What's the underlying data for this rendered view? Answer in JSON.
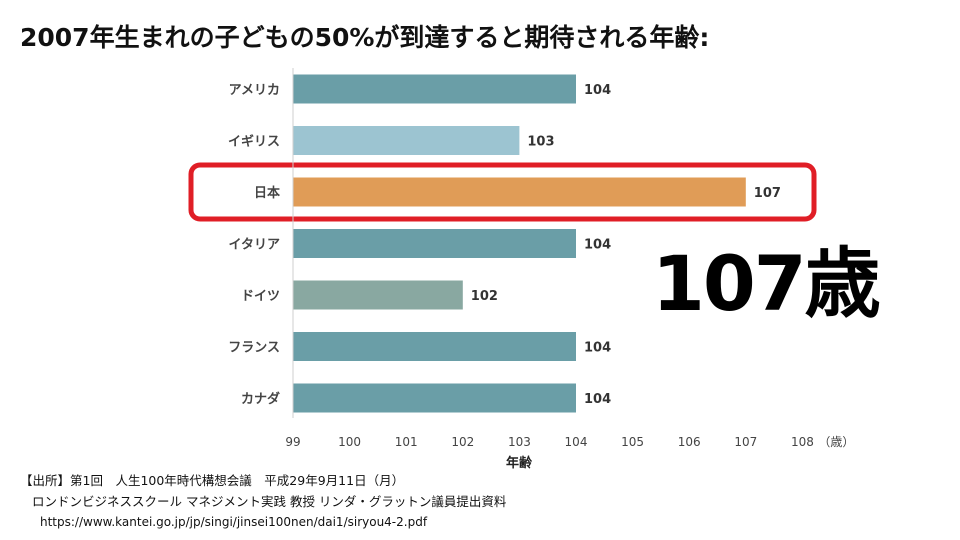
{
  "title": "2007年生まれの子どもの50%が到達すると期待される年齢:",
  "callout": "107歳",
  "colors": {
    "bar_default": "#6a9ea7",
    "bar_uk": "#9cc4d1",
    "bar_japan": "#e09c57",
    "bar_germany": "#89a8a1",
    "highlight": "#e01e26"
  },
  "chart_data": {
    "type": "bar",
    "orientation": "horizontal",
    "categories": [
      "アメリカ",
      "イギリス",
      "日本",
      "イタリア",
      "ドイツ",
      "フランス",
      "カナダ"
    ],
    "values": [
      104,
      103,
      107,
      104,
      102,
      104,
      104
    ],
    "data_labels": [
      "104",
      "103",
      "107",
      "104",
      "102",
      "104",
      "104"
    ],
    "bar_colors": [
      "#6a9ea7",
      "#9cc4d1",
      "#e09c57",
      "#6a9ea7",
      "#89a8a1",
      "#6a9ea7",
      "#6a9ea7"
    ],
    "highlighted_category": "日本",
    "xlim": [
      99,
      108
    ],
    "xticks": [
      "99",
      "100",
      "101",
      "102",
      "103",
      "104",
      "105",
      "106",
      "107",
      "108"
    ],
    "x_unit": "（歳）",
    "xlabel": "年齢",
    "ylabel": "",
    "grid": false
  },
  "source": {
    "line1": "【出所】第1回　人生100年時代構想会議　平成29年9月11日（月）",
    "line2": "ロンドンビジネススクール マネジメント実践 教授 リンダ・グラットン議員提出資料",
    "line3": "https://www.kantei.go.jp/jp/singi/jinsei100nen/dai1/siryou4-2.pdf"
  }
}
